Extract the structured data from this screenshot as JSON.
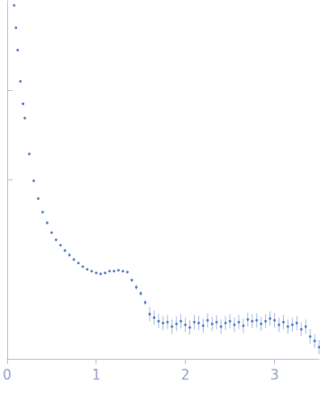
{
  "chart_data": {
    "type": "scatter",
    "x": [
      0.08,
      0.1,
      0.12,
      0.15,
      0.18,
      0.2,
      0.25,
      0.3,
      0.35,
      0.4,
      0.45,
      0.5,
      0.55,
      0.6,
      0.65,
      0.7,
      0.75,
      0.8,
      0.85,
      0.9,
      0.95,
      1.0,
      1.05,
      1.1,
      1.15,
      1.2,
      1.25,
      1.3,
      1.35,
      1.4,
      1.45,
      1.5,
      1.55,
      1.6,
      1.65,
      1.7,
      1.75,
      1.8,
      1.85,
      1.9,
      1.95,
      2.0,
      2.05,
      2.1,
      2.15,
      2.2,
      2.25,
      2.3,
      2.35,
      2.4,
      2.45,
      2.5,
      2.55,
      2.6,
      2.65,
      2.7,
      2.75,
      2.8,
      2.85,
      2.9,
      2.95,
      3.0,
      3.05,
      3.1,
      3.15,
      3.2,
      3.25,
      3.3,
      3.35,
      3.4,
      3.45,
      3.5
    ],
    "values": [
      3.95,
      3.7,
      3.45,
      3.1,
      2.85,
      2.69,
      2.29,
      1.99,
      1.79,
      1.64,
      1.52,
      1.41,
      1.33,
      1.27,
      1.21,
      1.16,
      1.11,
      1.07,
      1.03,
      1.0,
      0.98,
      0.96,
      0.95,
      0.96,
      0.98,
      0.98,
      0.99,
      0.98,
      0.97,
      0.88,
      0.8,
      0.73,
      0.63,
      0.5,
      0.46,
      0.42,
      0.4,
      0.41,
      0.36,
      0.39,
      0.42,
      0.38,
      0.35,
      0.41,
      0.4,
      0.37,
      0.43,
      0.39,
      0.41,
      0.36,
      0.4,
      0.42,
      0.38,
      0.41,
      0.37,
      0.44,
      0.42,
      0.43,
      0.39,
      0.42,
      0.45,
      0.43,
      0.38,
      0.41,
      0.36,
      0.38,
      0.4,
      0.33,
      0.36,
      0.25,
      0.2,
      0.13
    ],
    "errors": [
      0.01,
      0.01,
      0.01,
      0.01,
      0.01,
      0.01,
      0.01,
      0.01,
      0.01,
      0.01,
      0.01,
      0.01,
      0.01,
      0.01,
      0.01,
      0.01,
      0.01,
      0.01,
      0.01,
      0.01,
      0.01,
      0.01,
      0.01,
      0.01,
      0.01,
      0.01,
      0.01,
      0.01,
      0.01,
      0.01,
      0.03,
      0.03,
      0.03,
      0.08,
      0.08,
      0.08,
      0.08,
      0.08,
      0.08,
      0.08,
      0.08,
      0.08,
      0.08,
      0.08,
      0.08,
      0.08,
      0.08,
      0.08,
      0.08,
      0.08,
      0.08,
      0.08,
      0.08,
      0.08,
      0.08,
      0.08,
      0.08,
      0.08,
      0.08,
      0.08,
      0.08,
      0.08,
      0.08,
      0.08,
      0.08,
      0.08,
      0.08,
      0.08,
      0.08,
      0.08,
      0.08,
      0.08
    ],
    "color": "#3d6bb8",
    "marker": "circle",
    "xlim": [
      0,
      3.5
    ],
    "xticks": [
      0,
      1,
      2,
      3
    ],
    "ylim": [
      0,
      4
    ],
    "yticks": [
      2,
      3
    ],
    "tick_labels": "x",
    "grid": false
  }
}
